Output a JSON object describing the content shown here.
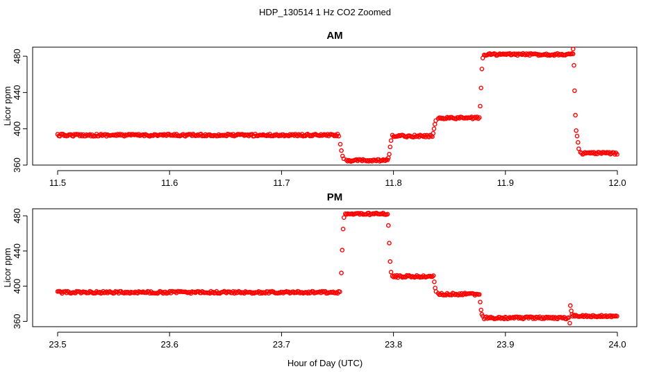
{
  "figure": {
    "suptitle": "HDP_130514  1 Hz CO2 Zoomed",
    "xlabel": "Hour of Day (UTC)"
  },
  "chart_data": [
    {
      "type": "scatter",
      "title": "AM",
      "ylabel": "Licor ppm",
      "xlabel": "",
      "xlim": [
        11.5,
        12.0
      ],
      "ylim": [
        360,
        490
      ],
      "xticks": [
        "11.5",
        "11.6",
        "11.7",
        "11.8",
        "11.9",
        "12.0"
      ],
      "yticks": [
        "360",
        "400",
        "440",
        "480"
      ],
      "marker_color": "#ff0000",
      "segments": [
        {
          "x": [
            11.5,
            11.752
          ],
          "y": 393
        },
        {
          "x": [
            11.758,
            11.795
          ],
          "y": 365
        },
        {
          "x": [
            11.799,
            11.835
          ],
          "y": 392
        },
        {
          "x": [
            11.84,
            11.877
          ],
          "y": 412
        },
        {
          "x": [
            11.881,
            11.961
          ],
          "y": 482
        },
        {
          "x": [
            11.967,
            12.0
          ],
          "y": 373
        }
      ],
      "transitions": [
        {
          "x": [
            11.7525,
            11.7535,
            11.7545,
            11.7555
          ],
          "y": [
            383,
            376,
            370,
            367
          ]
        },
        {
          "x": [
            11.7955,
            11.7962,
            11.797,
            11.7978
          ],
          "y": [
            368,
            372,
            380,
            387
          ]
        },
        {
          "x": [
            11.8355,
            11.8362,
            11.837,
            11.8378
          ],
          "y": [
            395,
            400,
            405,
            409
          ]
        },
        {
          "x": [
            11.8775,
            11.8782,
            11.879,
            11.8798
          ],
          "y": [
            425,
            445,
            466,
            478
          ]
        },
        {
          "x": [
            11.9605,
            11.9612,
            11.9618,
            11.9625,
            11.9632,
            11.964,
            11.9648,
            11.9655
          ],
          "y": [
            488,
            470,
            442,
            415,
            398,
            392,
            385,
            378
          ]
        }
      ]
    },
    {
      "type": "scatter",
      "title": "PM",
      "ylabel": "Licor ppm",
      "xlabel": "",
      "xlim": [
        23.5,
        24.0
      ],
      "ylim": [
        354,
        488
      ],
      "xticks": [
        "23.5",
        "23.6",
        "23.7",
        "23.8",
        "23.9",
        "24.0"
      ],
      "yticks": [
        "360",
        "400",
        "440",
        "480"
      ],
      "marker_color": "#ff0000",
      "segments": [
        {
          "x": [
            23.5,
            23.753
          ],
          "y": 393
        },
        {
          "x": [
            23.757,
            23.795
          ],
          "y": 482
        },
        {
          "x": [
            23.799,
            23.836
          ],
          "y": 411
        },
        {
          "x": [
            23.84,
            23.877
          ],
          "y": 391
        },
        {
          "x": [
            23.881,
            23.957
          ],
          "y": 364
        },
        {
          "x": [
            23.96,
            24.0
          ],
          "y": 366
        }
      ],
      "transitions": [
        {
          "x": [
            23.7535,
            23.7542,
            23.755,
            23.7558
          ],
          "y": [
            415,
            441,
            465,
            478
          ]
        },
        {
          "x": [
            23.7955,
            23.7962,
            23.797,
            23.7978
          ],
          "y": [
            469,
            449,
            428,
            416
          ]
        },
        {
          "x": [
            23.8365,
            23.8372,
            23.838
          ],
          "y": [
            405,
            398,
            394
          ]
        },
        {
          "x": [
            23.8775,
            23.8782,
            23.879,
            23.8798
          ],
          "y": [
            382,
            373,
            368,
            366
          ]
        },
        {
          "x": [
            23.9575,
            23.958,
            23.9588,
            23.9595
          ],
          "y": [
            358,
            378,
            372,
            368
          ]
        }
      ]
    }
  ]
}
